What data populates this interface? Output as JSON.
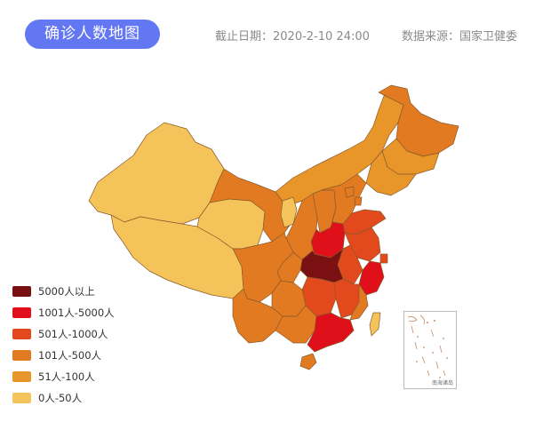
{
  "header": {
    "title": "确诊人数地图",
    "cutoff_label": "截止日期：",
    "cutoff_value": "2020-2-10 24:00",
    "source_label": "数据来源：",
    "source_value": "国家卫健委"
  },
  "legend": [
    {
      "label": "5000人以上",
      "color": "#7a1012"
    },
    {
      "label": "1001人-5000人",
      "color": "#e0101b"
    },
    {
      "label": "501人-1000人",
      "color": "#e24a1e"
    },
    {
      "label": "101人-500人",
      "color": "#e27a21"
    },
    {
      "label": "51人-100人",
      "color": "#e8962a"
    },
    {
      "label": "0人-50人",
      "color": "#f4c45a"
    }
  ],
  "inset": {
    "label": "南海诸岛"
  },
  "colors": {
    "border": "#8a5a2a",
    "title_bg": "#6377f2"
  }
}
